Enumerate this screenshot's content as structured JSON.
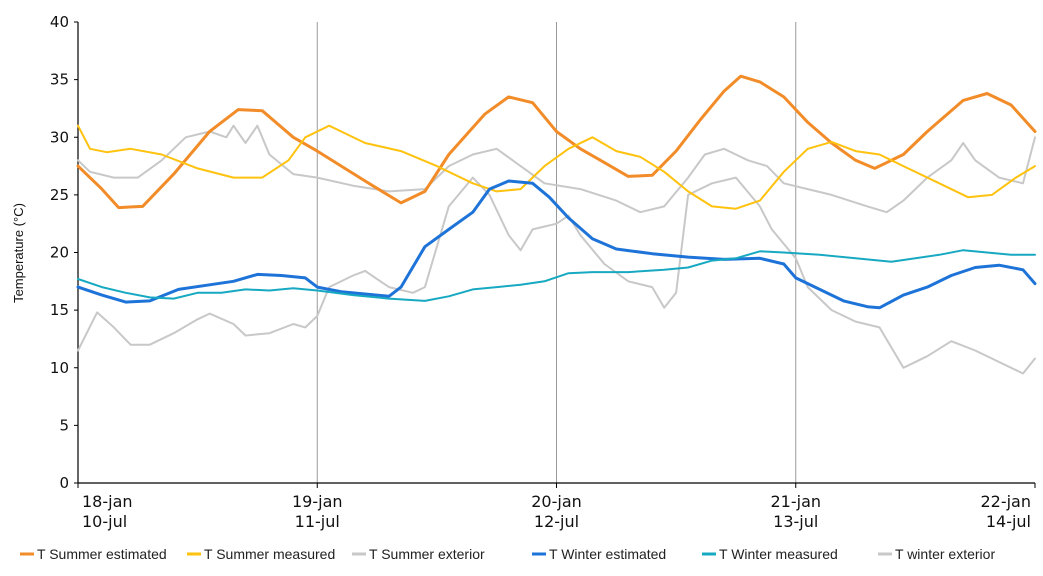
{
  "chart_data": {
    "type": "line",
    "title": "",
    "xlabel": "",
    "ylabel": "Temperature (°C)",
    "ylim": [
      0,
      40
    ],
    "yticks": [
      0,
      5,
      10,
      15,
      20,
      25,
      30,
      35,
      40
    ],
    "xlim": [
      0,
      4
    ],
    "x_unit": "days",
    "grid": "vertical lines at each day",
    "legend_position": "bottom",
    "x_ticks": [
      {
        "x": 0,
        "line1": "18-jan",
        "line2": "10-jul"
      },
      {
        "x": 1,
        "line1": "19-jan",
        "line2": "11-jul"
      },
      {
        "x": 2,
        "line1": "20-jan",
        "line2": "12-jul"
      },
      {
        "x": 3,
        "line1": "21-jan",
        "line2": "13-jul"
      },
      {
        "x": 4,
        "line1": "22-jan",
        "line2": "14-jul"
      }
    ],
    "series": [
      {
        "name": "T Summer estimated",
        "color": "#F28C28",
        "width": 3,
        "points": [
          [
            0,
            27.5
          ],
          [
            0.1,
            25.5
          ],
          [
            0.17,
            23.9
          ],
          [
            0.27,
            24.0
          ],
          [
            0.4,
            26.8
          ],
          [
            0.55,
            30.5
          ],
          [
            0.67,
            32.4
          ],
          [
            0.77,
            32.3
          ],
          [
            0.9,
            30.0
          ],
          [
            1.0,
            28.8
          ],
          [
            1.2,
            26.2
          ],
          [
            1.35,
            24.3
          ],
          [
            1.45,
            25.3
          ],
          [
            1.55,
            28.5
          ],
          [
            1.7,
            32.0
          ],
          [
            1.8,
            33.5
          ],
          [
            1.9,
            33.0
          ],
          [
            2.0,
            30.5
          ],
          [
            2.1,
            29.0
          ],
          [
            2.2,
            27.8
          ],
          [
            2.3,
            26.6
          ],
          [
            2.4,
            26.7
          ],
          [
            2.5,
            28.8
          ],
          [
            2.6,
            31.5
          ],
          [
            2.7,
            34.0
          ],
          [
            2.77,
            35.3
          ],
          [
            2.85,
            34.8
          ],
          [
            2.95,
            33.5
          ],
          [
            3.05,
            31.3
          ],
          [
            3.15,
            29.5
          ],
          [
            3.25,
            28.0
          ],
          [
            3.33,
            27.3
          ],
          [
            3.45,
            28.5
          ],
          [
            3.55,
            30.5
          ],
          [
            3.7,
            33.2
          ],
          [
            3.8,
            33.8
          ],
          [
            3.9,
            32.8
          ],
          [
            4.0,
            30.5
          ]
        ]
      },
      {
        "name": "T Summer measured",
        "color": "#FFC20E",
        "width": 2,
        "points": [
          [
            0,
            31.0
          ],
          [
            0.05,
            29.0
          ],
          [
            0.12,
            28.7
          ],
          [
            0.22,
            29.0
          ],
          [
            0.35,
            28.5
          ],
          [
            0.5,
            27.3
          ],
          [
            0.65,
            26.5
          ],
          [
            0.77,
            26.5
          ],
          [
            0.88,
            28.0
          ],
          [
            0.95,
            30.0
          ],
          [
            1.05,
            31.0
          ],
          [
            1.2,
            29.5
          ],
          [
            1.35,
            28.8
          ],
          [
            1.5,
            27.5
          ],
          [
            1.65,
            26.0
          ],
          [
            1.75,
            25.3
          ],
          [
            1.85,
            25.5
          ],
          [
            1.95,
            27.5
          ],
          [
            2.05,
            29.0
          ],
          [
            2.15,
            30.0
          ],
          [
            2.25,
            28.8
          ],
          [
            2.35,
            28.3
          ],
          [
            2.45,
            27.0
          ],
          [
            2.55,
            25.3
          ],
          [
            2.65,
            24.0
          ],
          [
            2.75,
            23.8
          ],
          [
            2.85,
            24.5
          ],
          [
            2.95,
            27.0
          ],
          [
            3.05,
            29.0
          ],
          [
            3.15,
            29.6
          ],
          [
            3.25,
            28.8
          ],
          [
            3.35,
            28.5
          ],
          [
            3.45,
            27.5
          ],
          [
            3.6,
            26.0
          ],
          [
            3.72,
            24.8
          ],
          [
            3.82,
            25.0
          ],
          [
            3.92,
            26.5
          ],
          [
            4.0,
            27.5
          ]
        ]
      },
      {
        "name": "T Summer exterior",
        "color": "#C8C8C8",
        "width": 2,
        "points": [
          [
            0,
            28.0
          ],
          [
            0.05,
            27.0
          ],
          [
            0.15,
            26.5
          ],
          [
            0.25,
            26.5
          ],
          [
            0.35,
            28.0
          ],
          [
            0.45,
            30.0
          ],
          [
            0.55,
            30.5
          ],
          [
            0.62,
            30.0
          ],
          [
            0.65,
            31.0
          ],
          [
            0.7,
            29.5
          ],
          [
            0.75,
            31.0
          ],
          [
            0.8,
            28.5
          ],
          [
            0.9,
            26.8
          ],
          [
            1.0,
            26.5
          ],
          [
            1.15,
            25.8
          ],
          [
            1.3,
            25.3
          ],
          [
            1.45,
            25.5
          ],
          [
            1.55,
            27.5
          ],
          [
            1.65,
            28.5
          ],
          [
            1.75,
            29.0
          ],
          [
            1.85,
            27.5
          ],
          [
            1.95,
            26.0
          ],
          [
            2.1,
            25.5
          ],
          [
            2.25,
            24.5
          ],
          [
            2.35,
            23.5
          ],
          [
            2.45,
            24.0
          ],
          [
            2.55,
            26.5
          ],
          [
            2.62,
            28.5
          ],
          [
            2.7,
            29.0
          ],
          [
            2.75,
            28.5
          ],
          [
            2.8,
            28.0
          ],
          [
            2.88,
            27.5
          ],
          [
            2.95,
            26.0
          ],
          [
            3.05,
            25.5
          ],
          [
            3.15,
            25.0
          ],
          [
            3.3,
            24.0
          ],
          [
            3.38,
            23.5
          ],
          [
            3.45,
            24.5
          ],
          [
            3.55,
            26.5
          ],
          [
            3.65,
            28.0
          ],
          [
            3.7,
            29.5
          ],
          [
            3.75,
            28.0
          ],
          [
            3.85,
            26.5
          ],
          [
            3.95,
            26.0
          ],
          [
            4.0,
            30.0
          ]
        ]
      },
      {
        "name": "T Winter estimated",
        "color": "#1E73D8",
        "width": 3,
        "points": [
          [
            0,
            17.0
          ],
          [
            0.1,
            16.3
          ],
          [
            0.2,
            15.7
          ],
          [
            0.3,
            15.8
          ],
          [
            0.42,
            16.8
          ],
          [
            0.55,
            17.2
          ],
          [
            0.65,
            17.5
          ],
          [
            0.75,
            18.1
          ],
          [
            0.85,
            18.0
          ],
          [
            0.95,
            17.8
          ],
          [
            1.0,
            17.0
          ],
          [
            1.1,
            16.6
          ],
          [
            1.2,
            16.4
          ],
          [
            1.3,
            16.2
          ],
          [
            1.35,
            17.0
          ],
          [
            1.45,
            20.5
          ],
          [
            1.55,
            22.0
          ],
          [
            1.65,
            23.5
          ],
          [
            1.72,
            25.5
          ],
          [
            1.8,
            26.2
          ],
          [
            1.9,
            26.0
          ],
          [
            1.97,
            24.8
          ],
          [
            2.05,
            23.0
          ],
          [
            2.15,
            21.2
          ],
          [
            2.25,
            20.3
          ],
          [
            2.4,
            19.9
          ],
          [
            2.55,
            19.6
          ],
          [
            2.7,
            19.4
          ],
          [
            2.85,
            19.5
          ],
          [
            2.95,
            19.0
          ],
          [
            3.0,
            17.8
          ],
          [
            3.1,
            16.8
          ],
          [
            3.2,
            15.8
          ],
          [
            3.3,
            15.3
          ],
          [
            3.35,
            15.2
          ],
          [
            3.45,
            16.3
          ],
          [
            3.55,
            17.0
          ],
          [
            3.65,
            18.0
          ],
          [
            3.75,
            18.7
          ],
          [
            3.85,
            18.9
          ],
          [
            3.95,
            18.5
          ],
          [
            4.0,
            17.3
          ]
        ]
      },
      {
        "name": "T Winter measured",
        "color": "#17A9C1",
        "width": 2,
        "points": [
          [
            0,
            17.7
          ],
          [
            0.1,
            17.0
          ],
          [
            0.2,
            16.5
          ],
          [
            0.3,
            16.1
          ],
          [
            0.4,
            16.0
          ],
          [
            0.5,
            16.5
          ],
          [
            0.6,
            16.5
          ],
          [
            0.7,
            16.8
          ],
          [
            0.8,
            16.7
          ],
          [
            0.9,
            16.9
          ],
          [
            1.0,
            16.7
          ],
          [
            1.15,
            16.3
          ],
          [
            1.3,
            16.0
          ],
          [
            1.45,
            15.8
          ],
          [
            1.55,
            16.2
          ],
          [
            1.65,
            16.8
          ],
          [
            1.75,
            17.0
          ],
          [
            1.85,
            17.2
          ],
          [
            1.95,
            17.5
          ],
          [
            2.05,
            18.2
          ],
          [
            2.15,
            18.3
          ],
          [
            2.3,
            18.3
          ],
          [
            2.45,
            18.5
          ],
          [
            2.55,
            18.7
          ],
          [
            2.65,
            19.3
          ],
          [
            2.75,
            19.5
          ],
          [
            2.85,
            20.1
          ],
          [
            2.95,
            20.0
          ],
          [
            3.1,
            19.8
          ],
          [
            3.25,
            19.5
          ],
          [
            3.4,
            19.2
          ],
          [
            3.5,
            19.5
          ],
          [
            3.6,
            19.8
          ],
          [
            3.7,
            20.2
          ],
          [
            3.8,
            20.0
          ],
          [
            3.9,
            19.8
          ],
          [
            4.0,
            19.8
          ]
        ]
      },
      {
        "name": "T winter exterior",
        "color": "#C8C8C8",
        "width": 2,
        "points": [
          [
            0,
            11.5
          ],
          [
            0.08,
            14.8
          ],
          [
            0.15,
            13.5
          ],
          [
            0.22,
            12.0
          ],
          [
            0.3,
            12.0
          ],
          [
            0.4,
            13.0
          ],
          [
            0.5,
            14.2
          ],
          [
            0.55,
            14.7
          ],
          [
            0.65,
            13.8
          ],
          [
            0.7,
            12.8
          ],
          [
            0.8,
            13.0
          ],
          [
            0.9,
            13.8
          ],
          [
            0.95,
            13.5
          ],
          [
            1.0,
            14.5
          ],
          [
            1.05,
            17.0
          ],
          [
            1.15,
            18.0
          ],
          [
            1.2,
            18.4
          ],
          [
            1.3,
            17.0
          ],
          [
            1.4,
            16.5
          ],
          [
            1.45,
            17.0
          ],
          [
            1.55,
            24.0
          ],
          [
            1.65,
            26.5
          ],
          [
            1.72,
            25.0
          ],
          [
            1.8,
            21.5
          ],
          [
            1.85,
            20.2
          ],
          [
            1.9,
            22.0
          ],
          [
            2.0,
            22.5
          ],
          [
            2.05,
            23.2
          ],
          [
            2.1,
            21.5
          ],
          [
            2.2,
            19.0
          ],
          [
            2.3,
            17.5
          ],
          [
            2.4,
            17.0
          ],
          [
            2.45,
            15.2
          ],
          [
            2.5,
            16.5
          ],
          [
            2.55,
            25.0
          ],
          [
            2.65,
            26.0
          ],
          [
            2.75,
            26.5
          ],
          [
            2.85,
            24.0
          ],
          [
            2.9,
            22.0
          ],
          [
            3.0,
            19.5
          ],
          [
            3.05,
            17.0
          ],
          [
            3.15,
            15.0
          ],
          [
            3.25,
            14.0
          ],
          [
            3.35,
            13.5
          ],
          [
            3.45,
            10.0
          ],
          [
            3.55,
            11.0
          ],
          [
            3.65,
            12.3
          ],
          [
            3.75,
            11.5
          ],
          [
            3.85,
            10.5
          ],
          [
            3.95,
            9.5
          ],
          [
            4.0,
            10.8
          ]
        ]
      }
    ]
  }
}
